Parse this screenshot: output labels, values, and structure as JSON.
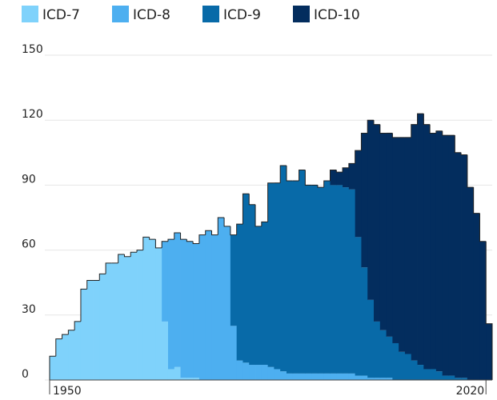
{
  "chart_data": {
    "type": "stacked-step-area",
    "x": [
      1950,
      1951,
      1952,
      1953,
      1954,
      1955,
      1956,
      1957,
      1958,
      1959,
      1960,
      1961,
      1962,
      1963,
      1964,
      1965,
      1966,
      1967,
      1968,
      1969,
      1970,
      1971,
      1972,
      1973,
      1974,
      1975,
      1976,
      1977,
      1978,
      1979,
      1980,
      1981,
      1982,
      1983,
      1984,
      1985,
      1986,
      1987,
      1988,
      1989,
      1990,
      1991,
      1992,
      1993,
      1994,
      1995,
      1996,
      1997,
      1998,
      1999,
      2000,
      2001,
      2002,
      2003,
      2004,
      2005,
      2006,
      2007,
      2008,
      2009,
      2010,
      2011,
      2012,
      2013,
      2014,
      2015,
      2016,
      2017,
      2018,
      2019,
      2020
    ],
    "series": [
      {
        "name": "ICD-7",
        "color": "#7fd2fb",
        "values": [
          11,
          19,
          21,
          23,
          27,
          42,
          46,
          46,
          49,
          54,
          54,
          58,
          57,
          59,
          60,
          66,
          65,
          61,
          27,
          5,
          6,
          1,
          1,
          1,
          null,
          null,
          null,
          null,
          null,
          null,
          null,
          null,
          null,
          null,
          null,
          null,
          null,
          null,
          null,
          null,
          null,
          null,
          null,
          null,
          null,
          null,
          null,
          null,
          null,
          null,
          null,
          null,
          null,
          null,
          null,
          null,
          null,
          null,
          null,
          null,
          null,
          null,
          null,
          null,
          null,
          null,
          null,
          null,
          null,
          null,
          null
        ]
      },
      {
        "name": "ICD-8",
        "color": "#4daff0",
        "values": [
          null,
          null,
          null,
          null,
          null,
          null,
          null,
          null,
          null,
          null,
          null,
          null,
          null,
          null,
          null,
          null,
          null,
          null,
          37,
          60,
          62,
          64,
          63,
          62,
          67,
          69,
          67,
          75,
          71,
          25,
          9,
          8,
          7,
          7,
          7,
          6,
          5,
          4,
          3,
          3,
          3,
          3,
          3,
          3,
          3,
          3,
          3,
          3,
          3,
          2,
          2,
          1,
          1,
          1,
          1,
          null,
          null,
          null,
          null,
          null,
          null,
          null,
          null,
          null,
          null,
          null,
          null,
          null,
          null,
          null,
          null
        ]
      },
      {
        "name": "ICD-9",
        "color": "#086aa8",
        "values": [
          null,
          null,
          null,
          null,
          null,
          null,
          null,
          null,
          null,
          null,
          null,
          null,
          null,
          null,
          null,
          null,
          null,
          null,
          null,
          null,
          null,
          null,
          null,
          null,
          null,
          null,
          null,
          null,
          null,
          42,
          63,
          78,
          74,
          64,
          66,
          85,
          86,
          95,
          89,
          89,
          94,
          87,
          87,
          86,
          89,
          87,
          87,
          86,
          85,
          64,
          50,
          36,
          26,
          22,
          19,
          17,
          13,
          12,
          9,
          7,
          5,
          5,
          4,
          2,
          2,
          1,
          1,
          null,
          null,
          null,
          null
        ]
      },
      {
        "name": "ICD-10",
        "color": "#032d5e",
        "values": [
          null,
          null,
          null,
          null,
          null,
          null,
          null,
          null,
          null,
          null,
          null,
          null,
          null,
          null,
          null,
          null,
          null,
          null,
          null,
          null,
          null,
          null,
          null,
          null,
          null,
          null,
          null,
          null,
          null,
          null,
          null,
          null,
          null,
          null,
          null,
          null,
          null,
          null,
          null,
          null,
          null,
          null,
          null,
          null,
          null,
          7,
          6,
          9,
          12,
          40,
          62,
          83,
          91,
          91,
          94,
          95,
          99,
          100,
          109,
          116,
          113,
          109,
          111,
          111,
          111,
          104,
          103,
          89,
          77,
          64,
          26
        ]
      }
    ],
    "xlim": [
      1950,
      2021
    ],
    "xticks": [
      1950,
      2020
    ],
    "ylim": [
      0,
      150
    ],
    "yticks": [
      0,
      30,
      60,
      90,
      120,
      150
    ],
    "grid": true
  }
}
